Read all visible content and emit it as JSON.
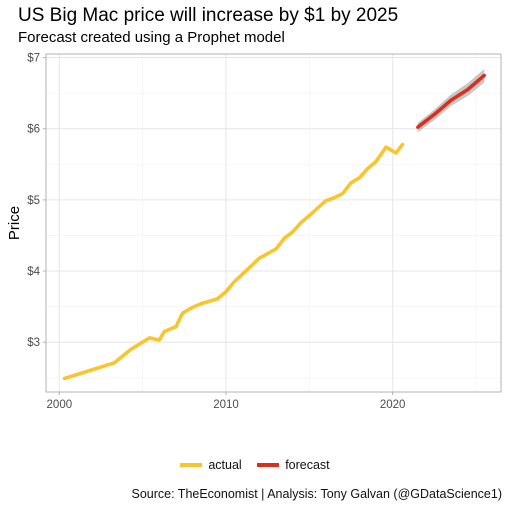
{
  "chart_data": {
    "type": "line",
    "title": "US Big Mac price will increase by $1 by 2025",
    "subtitle": "Forecast created using a Prophet model",
    "xlabel": "",
    "ylabel": "Price",
    "xlim": [
      1999.2,
      2026.5
    ],
    "ylim": [
      2.3,
      7.05
    ],
    "x_ticks": [
      2000,
      2010,
      2020
    ],
    "x_tick_labels": [
      "2000",
      "2010",
      "2020"
    ],
    "y_ticks": [
      3,
      4,
      5,
      6,
      7
    ],
    "y_tick_labels": [
      "$3",
      "$4",
      "$5",
      "$6",
      "$7"
    ],
    "grid": true,
    "legend_position": "bottom",
    "caption": "Source: TheEconomist  |  Analysis: Tony Galvan (@GDataScience1)",
    "series": [
      {
        "name": "actual",
        "color": "#F9C52F",
        "x": [
          2000.3,
          2003.3,
          2004.3,
          2005.4,
          2006.0,
          2006.3,
          2007.0,
          2007.4,
          2008.0,
          2008.5,
          2009.5,
          2010.0,
          2010.5,
          2011.0,
          2012.0,
          2013.0,
          2013.5,
          2014.0,
          2014.5,
          2015.0,
          2016.0,
          2016.5,
          2017.0,
          2017.5,
          2018.0,
          2018.5,
          2019.0,
          2019.6,
          2020.2,
          2020.6
        ],
        "y": [
          2.49,
          2.71,
          2.9,
          3.06,
          3.03,
          3.15,
          3.22,
          3.41,
          3.49,
          3.54,
          3.61,
          3.71,
          3.85,
          3.96,
          4.18,
          4.31,
          4.46,
          4.55,
          4.68,
          4.78,
          4.99,
          5.03,
          5.09,
          5.24,
          5.31,
          5.44,
          5.54,
          5.74,
          5.66,
          5.78
        ]
      },
      {
        "name": "forecast",
        "color": "#D7301F",
        "x": [
          2021.5,
          2022.5,
          2023.5,
          2024.5,
          2025.5
        ],
        "y": [
          6.02,
          6.2,
          6.4,
          6.55,
          6.75
        ],
        "upper": [
          6.08,
          6.27,
          6.48,
          6.64,
          6.84
        ],
        "lower": [
          5.95,
          6.12,
          6.32,
          6.46,
          6.65
        ]
      }
    ]
  }
}
